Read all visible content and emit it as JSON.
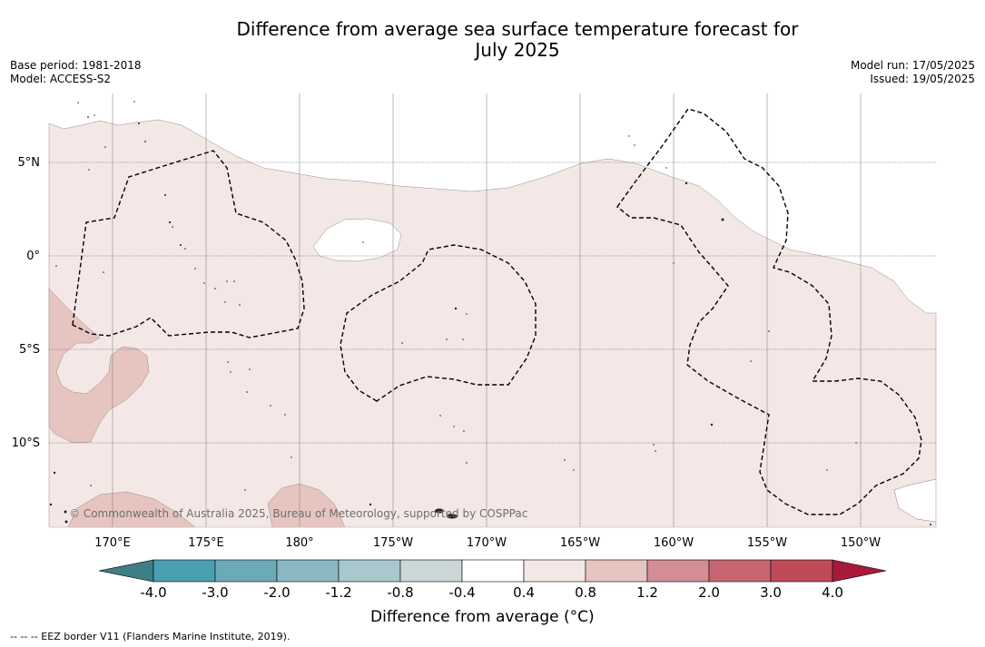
{
  "title_line1": "Difference from average sea surface temperature forecast for",
  "title_line2": "July 2025",
  "base_period": "Base period: 1981-2018",
  "model": "Model: ACCESS-S2",
  "model_run": "Model run: 17/05/2025",
  "issued": "Issued: 19/05/2025",
  "lat_labels": [
    "5°N",
    "0°",
    "5°S",
    "10°S"
  ],
  "lon_labels": [
    "170°E",
    "175°E",
    "180°",
    "175°W",
    "170°W",
    "165°W",
    "160°W",
    "155°W",
    "150°W"
  ],
  "copyright": "© Commonwealth of Australia 2025, Bureau of Meteorology, supported by COSPPac",
  "colorbar": {
    "title": "Difference from average (°C)",
    "tick_labels": [
      "-4.0",
      "-3.0",
      "-2.0",
      "-1.2",
      "-0.8",
      "-0.4",
      "0.4",
      "0.8",
      "1.2",
      "2.0",
      "3.0",
      "4.0"
    ],
    "colors": [
      "#3d7e87",
      "#4aa0b2",
      "#6daab8",
      "#8ab8c3",
      "#a9c8cd",
      "#cbd6d8",
      "#ffffff",
      "#f4e8e6",
      "#e6c5c0",
      "#d48d95",
      "#c76673",
      "#bf4a58",
      "#a81a3a"
    ]
  },
  "legend_note": "--  --  -- EEZ border V11 (Flanders Marine Institute, 2019)."
}
